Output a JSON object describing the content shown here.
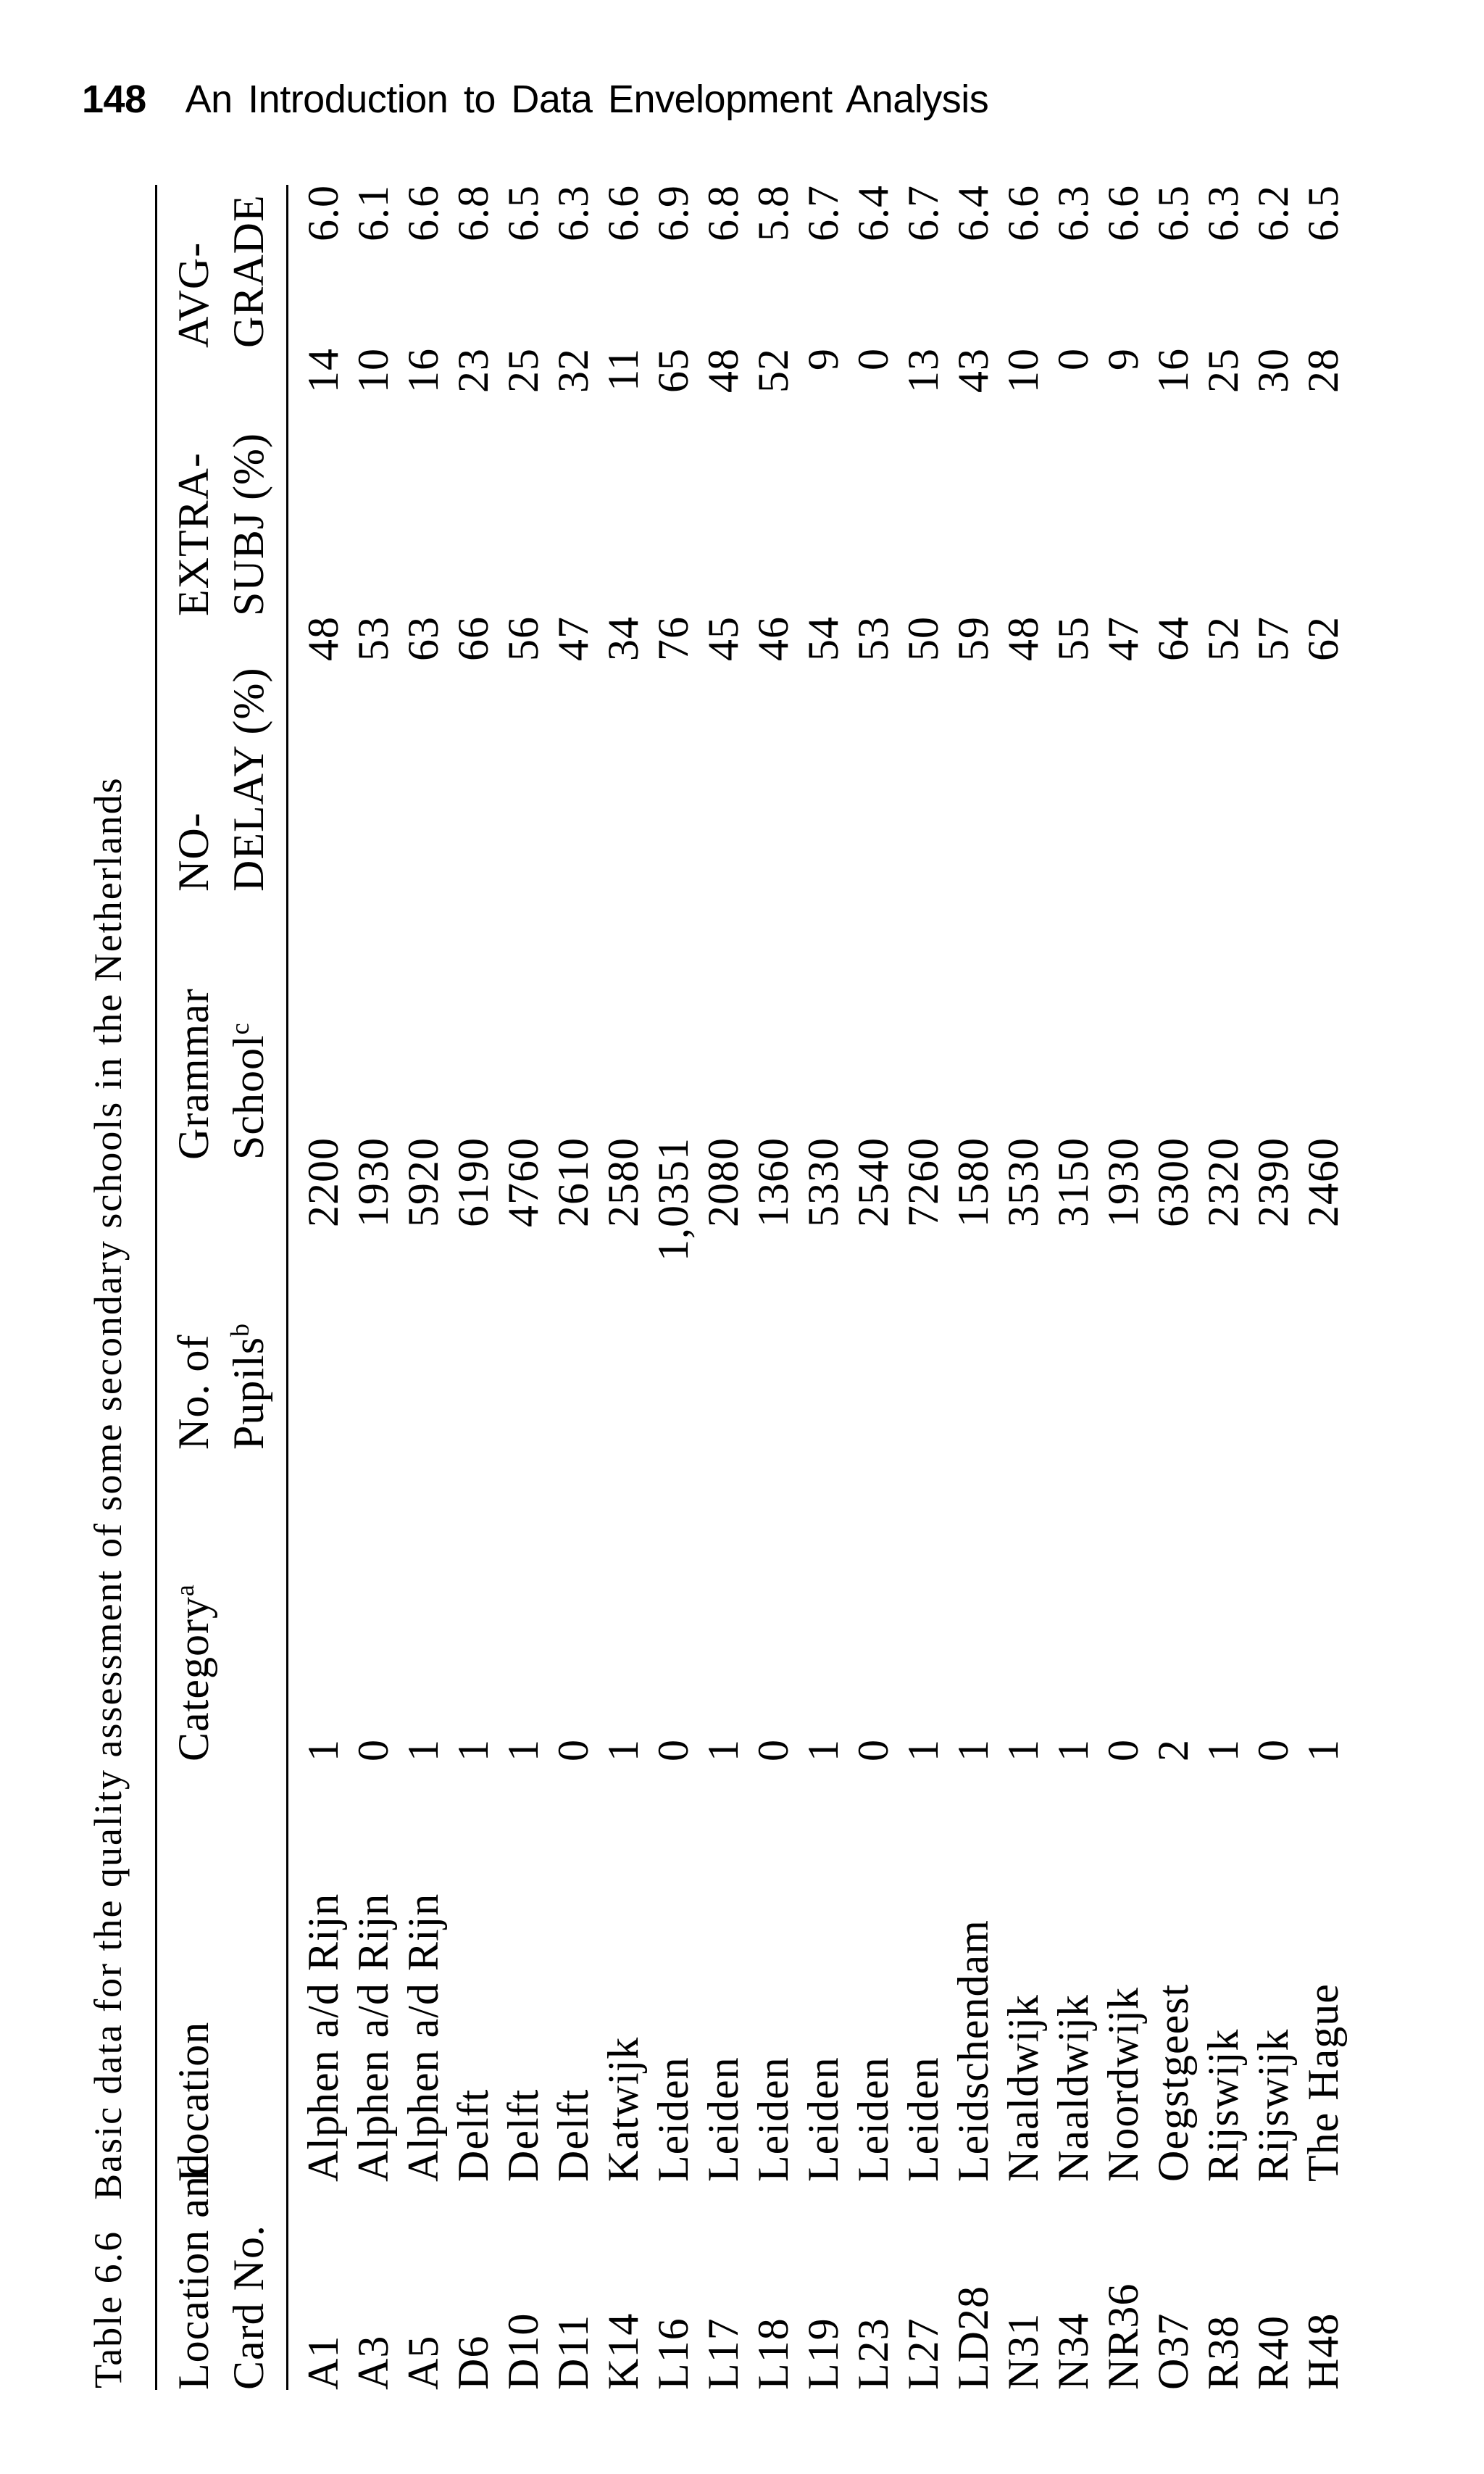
{
  "colors": {
    "ink": "#000000",
    "paper": "#ffffff"
  },
  "page_header": {
    "page_number": "148",
    "book_title": "An Introduction to Data Envelopment Analysis"
  },
  "table": {
    "caption_label": "Table 6.6",
    "caption_text": "Basic data for the quality assessment of some secondary schools in the Netherlands",
    "columns": [
      {
        "line1": "Location and",
        "line2": "Card No."
      },
      {
        "line1": "Location",
        "line2": ""
      },
      {
        "line1": "Category",
        "sup1": "a",
        "line2": ""
      },
      {
        "line1": "No. of",
        "line2": "Pupils",
        "sup2": "b"
      },
      {
        "line1": "Grammar",
        "line2": "School",
        "sup2": "c"
      },
      {
        "line1": "NO-",
        "line2": "DELAY (%)"
      },
      {
        "line1": "EXTRA-",
        "line2": "SUBJ (%)"
      },
      {
        "line1": "AVG-",
        "line2": "GRADE"
      }
    ],
    "rows": [
      [
        "A1",
        "Alphen a/d Rijn",
        "1",
        "220",
        "0",
        "48",
        "14",
        "6.0"
      ],
      [
        "A3",
        "Alphen a/d Rijn",
        "0",
        "193",
        "0",
        "53",
        "10",
        "6.1"
      ],
      [
        "A5",
        "Alphen a/d Rijn",
        "1",
        "592",
        "0",
        "63",
        "16",
        "6.6"
      ],
      [
        "D6",
        "Delft",
        "1",
        "619",
        "0",
        "66",
        "23",
        "6.8"
      ],
      [
        "D10",
        "Delft",
        "1",
        "476",
        "0",
        "56",
        "25",
        "6.5"
      ],
      [
        "D11",
        "Delft",
        "0",
        "261",
        "0",
        "47",
        "32",
        "6.3"
      ],
      [
        "K14",
        "Katwijk",
        "1",
        "258",
        "0",
        "34",
        "11",
        "6.6"
      ],
      [
        "L16",
        "Leiden",
        "0",
        "1,035",
        "1",
        "76",
        "65",
        "6.9"
      ],
      [
        "L17",
        "Leiden",
        "1",
        "208",
        "0",
        "45",
        "48",
        "6.8"
      ],
      [
        "L18",
        "Leiden",
        "0",
        "136",
        "0",
        "46",
        "52",
        "5.8"
      ],
      [
        "L19",
        "Leiden",
        "1",
        "533",
        "0",
        "54",
        "9",
        "6.7"
      ],
      [
        "L23",
        "Leiden",
        "0",
        "254",
        "0",
        "53",
        "0",
        "6.4"
      ],
      [
        "L27",
        "Leiden",
        "1",
        "726",
        "0",
        "50",
        "13",
        "6.7"
      ],
      [
        "LD28",
        "Leidschendam",
        "1",
        "158",
        "0",
        "59",
        "43",
        "6.4"
      ],
      [
        "N31",
        "Naaldwijk",
        "1",
        "353",
        "0",
        "48",
        "10",
        "6.6"
      ],
      [
        "N34",
        "Naaldwijk",
        "1",
        "315",
        "0",
        "55",
        "0",
        "6.3"
      ],
      [
        "NR36",
        "Noordwijk",
        "0",
        "193",
        "0",
        "47",
        "9",
        "6.6"
      ],
      [
        "O37",
        "Oegstgeest",
        "2",
        "630",
        "0",
        "64",
        "16",
        "6.5"
      ],
      [
        "R38",
        "Rijswijk",
        "1",
        "232",
        "0",
        "52",
        "25",
        "6.3"
      ],
      [
        "R40",
        "Rijswijk",
        "0",
        "239",
        "0",
        "57",
        "30",
        "6.2"
      ],
      [
        "H48",
        "The Hague",
        "1",
        "246",
        "0",
        "62",
        "28",
        "6.5"
      ]
    ]
  }
}
